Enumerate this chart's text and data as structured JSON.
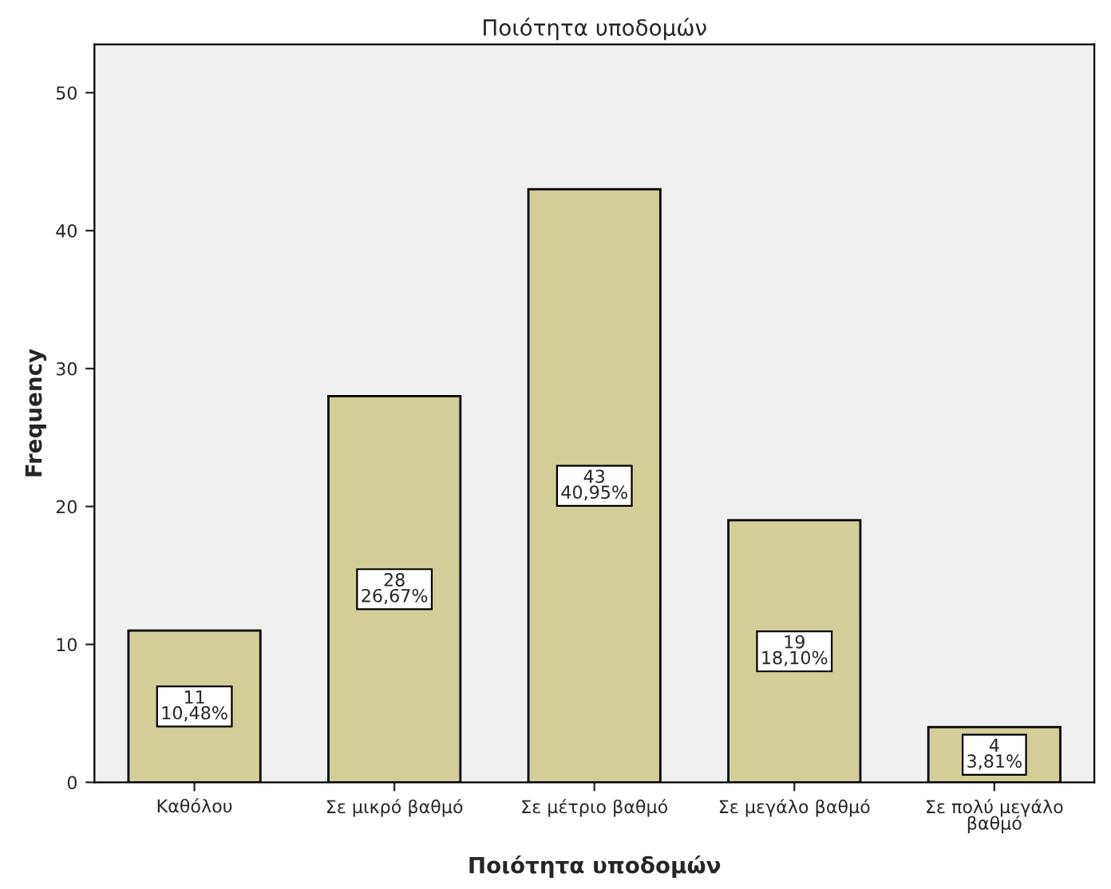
{
  "chart_data": {
    "type": "bar",
    "title": "Ποιότητα υποδομών",
    "xlabel": "Ποιότητα υποδομών",
    "ylabel": "Frequency",
    "categories": [
      "Καθόλου",
      "Σε μικρό βαθμό",
      "Σε μέτριο βαθμό",
      "Σε μεγάλο βαθμό",
      "Σε πολύ μεγάλο\nβαθμό"
    ],
    "values": [
      11,
      28,
      43,
      19,
      4
    ],
    "value_labels": [
      "11\n10,48%",
      "28\n26,67%",
      "43\n40,95%",
      "19\n18,10%",
      "4\n3,81%"
    ],
    "color": "#d3ce97",
    "ylim": [
      0,
      53.5
    ],
    "yticks": [
      0,
      10,
      20,
      30,
      40,
      50
    ],
    "grid": false,
    "legend": false
  }
}
